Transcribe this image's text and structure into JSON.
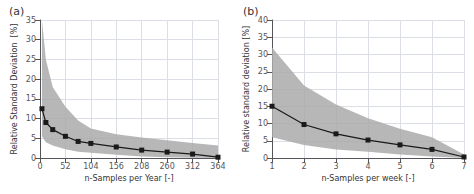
{
  "chart_data": [
    {
      "type": "line",
      "title": "(a)",
      "x_label": "n-Samples per Year [-]",
      "y_label": "Relative Standard Deviation  [%]",
      "x": [
        4,
        12,
        26,
        52,
        78,
        104,
        156,
        208,
        260,
        312,
        364
      ],
      "series": [
        {
          "type": "band",
          "color": "#aaaaaa",
          "upper": [
            35.0,
            25.0,
            18.0,
            13.0,
            9.5,
            7.5,
            6.0,
            5.2,
            4.5,
            3.8,
            3.2
          ],
          "lower": [
            5.5,
            4.0,
            3.2,
            2.2,
            1.6,
            1.3,
            0.8,
            0.4,
            0.2,
            0.05,
            0.0
          ]
        },
        {
          "type": "line",
          "color": "#1a1a1a",
          "marker": "square",
          "values": [
            12.5,
            9.0,
            7.2,
            5.5,
            4.2,
            3.7,
            2.8,
            2.0,
            1.5,
            1.0,
            0.2
          ]
        }
      ],
      "xlim": [
        0,
        364
      ],
      "xticks": [
        0,
        52,
        104,
        156,
        208,
        260,
        312,
        364
      ],
      "ylim": [
        0,
        35
      ],
      "yticks": [
        0,
        5,
        10,
        15,
        20,
        25,
        30,
        35
      ],
      "grid": true
    },
    {
      "type": "line",
      "title": "(b)",
      "x_label": "n-Samples per week [-]",
      "y_label": "Relative standard deviation [%]",
      "x": [
        1,
        2,
        3,
        4,
        5,
        6,
        7
      ],
      "series": [
        {
          "type": "band",
          "color": "#aaaaaa",
          "upper": [
            32.0,
            21.0,
            15.5,
            11.5,
            8.5,
            6.0,
            1.0
          ],
          "lower": [
            6.0,
            3.8,
            2.5,
            1.8,
            1.0,
            0.4,
            0.0
          ]
        },
        {
          "type": "line",
          "color": "#1a1a1a",
          "marker": "square",
          "values": [
            15.0,
            9.7,
            7.0,
            5.2,
            3.8,
            2.5,
            0.3
          ]
        }
      ],
      "xlim": [
        1,
        7
      ],
      "xticks": [
        1,
        2,
        3,
        4,
        5,
        6,
        7
      ],
      "ylim": [
        0,
        40
      ],
      "yticks": [
        0,
        5,
        10,
        15,
        20,
        25,
        30,
        35,
        40
      ],
      "grid": true
    }
  ]
}
